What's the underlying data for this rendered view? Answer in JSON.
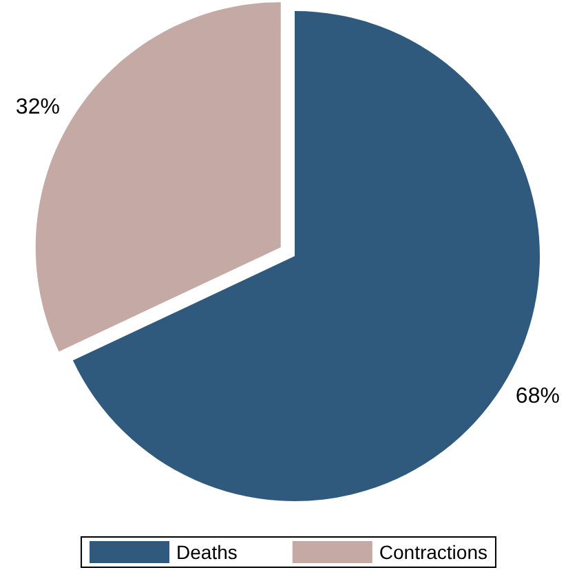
{
  "chart_data": {
    "type": "pie",
    "categories": [
      "Deaths",
      "Contractions"
    ],
    "values": [
      68,
      32
    ],
    "colors": [
      "#2f5a7d",
      "#c4a9a4"
    ],
    "legend": "bottom",
    "value_labels": [
      "68%",
      "32%"
    ]
  }
}
